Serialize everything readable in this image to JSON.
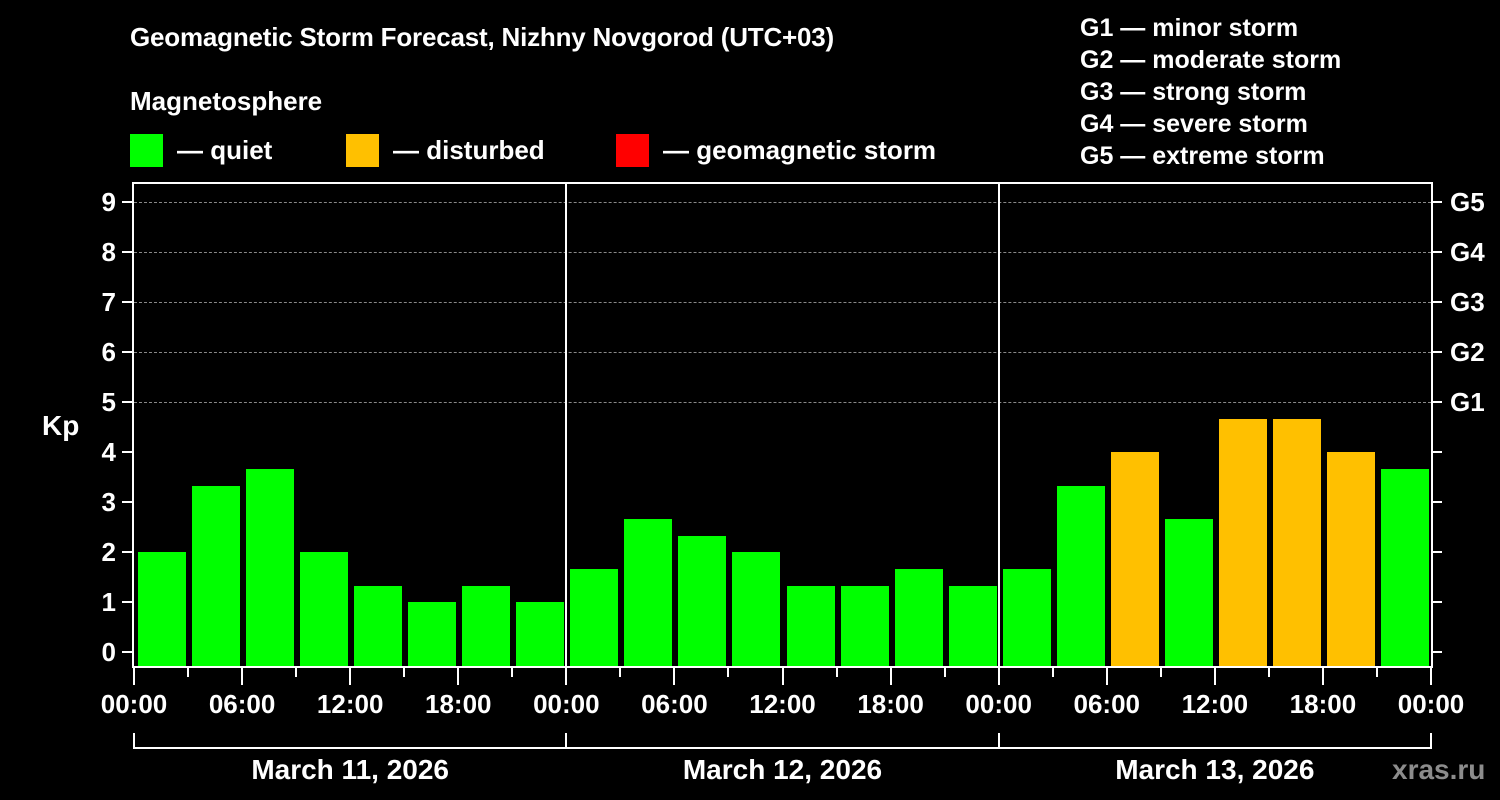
{
  "title": "Geomagnetic Storm Forecast, Nizhny Novgorod (UTC+03)",
  "subtitle": "Magnetosphere",
  "legend": [
    {
      "label": "— quiet",
      "color": "#00ff00"
    },
    {
      "label": "— disturbed",
      "color": "#ffc000"
    },
    {
      "label": "— geomagnetic storm",
      "color": "#ff0000"
    }
  ],
  "g_legend": [
    "G1 — minor storm",
    "G2 — moderate storm",
    "G3 — strong storm",
    "G4 — severe storm",
    "G5 — extreme storm"
  ],
  "y_axis": {
    "label": "Kp",
    "ticks": [
      "0",
      "1",
      "2",
      "3",
      "4",
      "5",
      "6",
      "7",
      "8",
      "9"
    ],
    "right_ticks": [
      "G1",
      "G2",
      "G3",
      "G4",
      "G5"
    ]
  },
  "x_axis": {
    "ticks": [
      "00:00",
      "06:00",
      "12:00",
      "18:00",
      "00:00",
      "06:00",
      "12:00",
      "18:00",
      "00:00",
      "06:00",
      "12:00",
      "18:00",
      "00:00"
    ],
    "days": [
      "March 11, 2026",
      "March 12, 2026",
      "March 13, 2026"
    ]
  },
  "watermark": "xras.ru",
  "colors": {
    "quiet": "#00ff00",
    "disturbed": "#ffc000",
    "storm": "#ff0000",
    "background": "#000000"
  },
  "chart_data": {
    "type": "bar",
    "title": "Geomagnetic Storm Forecast, Nizhny Novgorod (UTC+03)",
    "subtitle": "Magnetosphere",
    "xlabel": "",
    "ylabel": "Kp",
    "ylim": [
      0,
      9
    ],
    "grid": "dashed horizontal at Kp 5–9",
    "legend_position": "top",
    "categories": [
      "Mar 11 00-03",
      "Mar 11 03-06",
      "Mar 11 06-09",
      "Mar 11 09-12",
      "Mar 11 12-15",
      "Mar 11 15-18",
      "Mar 11 18-21",
      "Mar 11 21-24",
      "Mar 12 00-03",
      "Mar 12 03-06",
      "Mar 12 06-09",
      "Mar 12 09-12",
      "Mar 12 12-15",
      "Mar 12 15-18",
      "Mar 12 18-21",
      "Mar 12 21-24",
      "Mar 13 00-03",
      "Mar 13 03-06",
      "Mar 13 06-09",
      "Mar 13 09-12",
      "Mar 13 12-15",
      "Mar 13 15-18",
      "Mar 13 18-21",
      "Mar 13 21-24"
    ],
    "values": [
      2.0,
      3.33,
      3.67,
      2.0,
      1.33,
      1.0,
      1.33,
      1.0,
      1.67,
      2.67,
      2.33,
      2.0,
      1.33,
      1.33,
      1.67,
      1.33,
      1.67,
      3.33,
      4.0,
      2.67,
      4.67,
      4.67,
      4.0,
      3.67
    ],
    "status": [
      "quiet",
      "quiet",
      "quiet",
      "quiet",
      "quiet",
      "quiet",
      "quiet",
      "quiet",
      "quiet",
      "quiet",
      "quiet",
      "quiet",
      "quiet",
      "quiet",
      "quiet",
      "quiet",
      "quiet",
      "quiet",
      "disturbed",
      "quiet",
      "disturbed",
      "disturbed",
      "disturbed",
      "quiet"
    ],
    "right_axis": {
      "G1": 5,
      "G2": 6,
      "G3": 7,
      "G4": 8,
      "G5": 9
    }
  }
}
